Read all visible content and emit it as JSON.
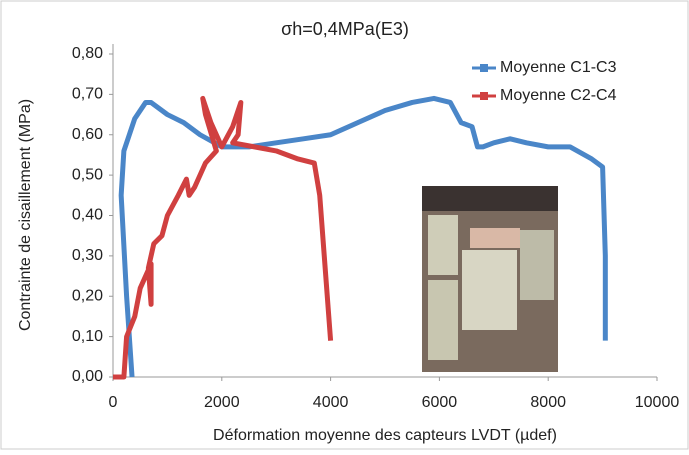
{
  "chart_data": {
    "type": "line",
    "title": "σh=0,4MPa(E3)",
    "x_label": "Déformation moyenne des capteurs LVDT (µdef)",
    "y_label": "Contrainte de cisaillement (MPa)",
    "xlim": [
      0,
      10000
    ],
    "xticks": [
      0,
      2000,
      4000,
      6000,
      8000,
      10000
    ],
    "ylim": [
      0,
      0.8
    ],
    "yticks": [
      {
        "value": 0,
        "label": "0,00"
      },
      {
        "value": 0.1,
        "label": "0,10"
      },
      {
        "value": 0.2,
        "label": "0,20"
      },
      {
        "value": 0.3,
        "label": "0,30"
      },
      {
        "value": 0.4,
        "label": "0,40"
      },
      {
        "value": 0.5,
        "label": "0,50"
      },
      {
        "value": 0.6,
        "label": "0,60"
      },
      {
        "value": 0.7,
        "label": "0,70"
      },
      {
        "value": 0.8,
        "label": "0,80"
      }
    ],
    "legend": "top-right",
    "series": [
      {
        "name": "Moyenne C1-C3",
        "color": "#4a86c8",
        "x": [
          350,
          250,
          150,
          200,
          400,
          600,
          700,
          1000,
          1300,
          1600,
          2000,
          2500,
          3000,
          3500,
          4000,
          4500,
          5000,
          5500,
          5900,
          6200,
          6400,
          6600,
          6700,
          6800,
          7000,
          7300,
          7600,
          8000,
          8400,
          8800,
          9000,
          9050,
          9050
        ],
        "values": [
          0.0,
          0.2,
          0.45,
          0.56,
          0.64,
          0.68,
          0.68,
          0.65,
          0.63,
          0.6,
          0.57,
          0.57,
          0.58,
          0.59,
          0.6,
          0.63,
          0.66,
          0.68,
          0.69,
          0.68,
          0.63,
          0.62,
          0.57,
          0.57,
          0.58,
          0.59,
          0.58,
          0.57,
          0.57,
          0.54,
          0.52,
          0.3,
          0.09
        ]
      },
      {
        "name": "Moyenne C2-C4",
        "color": "#d04040",
        "x": [
          0,
          200,
          250,
          400,
          500,
          600,
          700,
          700,
          650,
          750,
          900,
          1000,
          1200,
          1350,
          1400,
          1500,
          1700,
          1900,
          1700,
          1650,
          1800,
          2000,
          2200,
          2350,
          2300,
          2200,
          2600,
          3000,
          3400,
          3700,
          3800,
          4000
        ],
        "values": [
          0,
          0,
          0.1,
          0.15,
          0.22,
          0.25,
          0.28,
          0.18,
          0.27,
          0.33,
          0.35,
          0.4,
          0.45,
          0.49,
          0.45,
          0.47,
          0.53,
          0.56,
          0.65,
          0.69,
          0.63,
          0.57,
          0.62,
          0.68,
          0.6,
          0.58,
          0.57,
          0.56,
          0.54,
          0.53,
          0.45,
          0.09
        ]
      }
    ]
  }
}
